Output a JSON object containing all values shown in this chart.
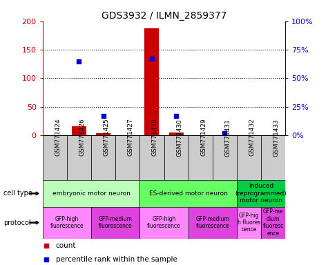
{
  "title": "GDS3932 / ILMN_2859377",
  "samples": [
    "GSM771424",
    "GSM771426",
    "GSM771425",
    "GSM771427",
    "GSM771428",
    "GSM771430",
    "GSM771429",
    "GSM771431",
    "GSM771432",
    "GSM771433"
  ],
  "count_values": [
    0,
    15,
    3,
    0,
    188,
    5,
    0,
    0,
    0,
    0
  ],
  "percentile_values": [
    null,
    65,
    17,
    null,
    67,
    17,
    null,
    2,
    null,
    null
  ],
  "ylim_left": [
    0,
    200
  ],
  "ylim_right": [
    0,
    100
  ],
  "yticks_left": [
    0,
    50,
    100,
    150,
    200
  ],
  "yticks_right": [
    0,
    25,
    50,
    75,
    100
  ],
  "ytick_labels_left": [
    "0",
    "50",
    "100",
    "150",
    "200"
  ],
  "ytick_labels_right": [
    "0%",
    "25%",
    "50%",
    "75%",
    "100%"
  ],
  "left_axis_color": "#cc0000",
  "right_axis_color": "#0000cc",
  "bar_color": "#cc0000",
  "dot_color": "#0000cc",
  "cell_type_groups": [
    {
      "label": "embryonic motor neuron",
      "start": 0,
      "end": 4,
      "color": "#bbffbb"
    },
    {
      "label": "ES-derived motor neuron",
      "start": 4,
      "end": 8,
      "color": "#66ff66"
    },
    {
      "label": "induced\n(reprogrammed)\nmotor neuron",
      "start": 8,
      "end": 10,
      "color": "#00cc44"
    }
  ],
  "protocol_groups": [
    {
      "label": "GFP-high\nfluorescence",
      "start": 0,
      "end": 2,
      "color": "#ff88ff"
    },
    {
      "label": "GFP-medium\nfluorescence",
      "start": 2,
      "end": 4,
      "color": "#dd44dd"
    },
    {
      "label": "GFP-high\nfluorescence",
      "start": 4,
      "end": 6,
      "color": "#ff88ff"
    },
    {
      "label": "GFP-medium\nfluorescence",
      "start": 6,
      "end": 8,
      "color": "#dd44dd"
    },
    {
      "label": "GFP-hig\nh fluores\ncence",
      "start": 8,
      "end": 9,
      "color": "#ff88ff"
    },
    {
      "label": "GFP-me\ndium\nfluoresc\nence",
      "start": 9,
      "end": 10,
      "color": "#dd44dd"
    }
  ],
  "legend_count_label": "count",
  "legend_percentile_label": "percentile rank within the sample",
  "sample_bg_color": "#cccccc",
  "left_label": "cell type",
  "protocol_label": "protocol"
}
